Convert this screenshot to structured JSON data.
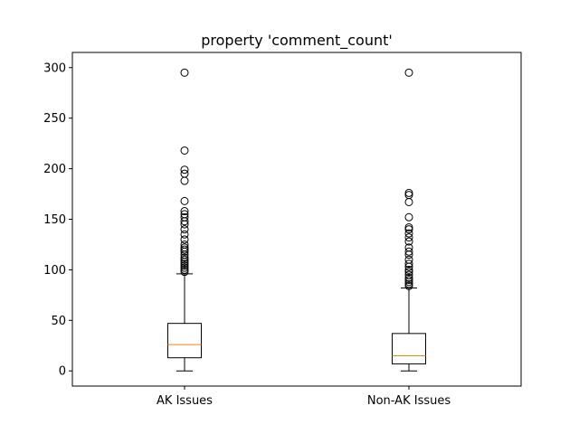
{
  "chart_data": {
    "type": "box",
    "title": "property 'comment_count'",
    "xlabel": "",
    "ylabel": "",
    "ylim": [
      -15,
      315
    ],
    "yticks": [
      0,
      50,
      100,
      150,
      200,
      250,
      300
    ],
    "grid": false,
    "categories": [
      "AK Issues",
      "Non-AK Issues"
    ],
    "boxes": [
      {
        "label": "AK Issues",
        "whisker_low": 0,
        "q1": 13,
        "median": 26,
        "q3": 47,
        "whisker_high": 96,
        "outliers": [
          98,
          100,
          102,
          104,
          106,
          108,
          110,
          112,
          115,
          118,
          120,
          122,
          125,
          130,
          135,
          140,
          145,
          148,
          152,
          155,
          158,
          168,
          188,
          195,
          199,
          218,
          295
        ]
      },
      {
        "label": "Non-AK Issues",
        "whisker_low": 0,
        "q1": 7,
        "median": 15,
        "q3": 37,
        "whisker_high": 82,
        "outliers": [
          84,
          86,
          88,
          90,
          92,
          95,
          98,
          100,
          103,
          106,
          110,
          115,
          118,
          122,
          128,
          132,
          136,
          140,
          142,
          152,
          167,
          174,
          176,
          295
        ]
      }
    ],
    "colors": {
      "median": "#ff7f0e",
      "box": "#000000"
    }
  }
}
